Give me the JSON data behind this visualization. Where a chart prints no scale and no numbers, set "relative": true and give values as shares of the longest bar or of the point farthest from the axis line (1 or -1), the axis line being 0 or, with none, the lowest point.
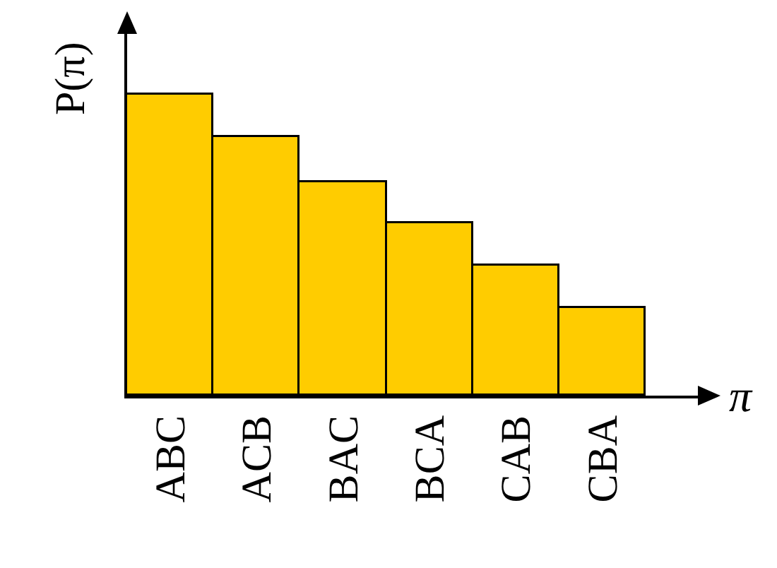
{
  "chart_data": {
    "type": "bar",
    "xlabel": "π",
    "ylabel": "P(π)",
    "categories": [
      "ABC",
      "ACB",
      "BAC",
      "BCA",
      "CAB",
      "CBA"
    ],
    "values": [
      1,
      0.86,
      0.71,
      0.57,
      0.43,
      0.29
    ],
    "color": "#ffcc00",
    "relative": true,
    "tick_labels": "x"
  }
}
